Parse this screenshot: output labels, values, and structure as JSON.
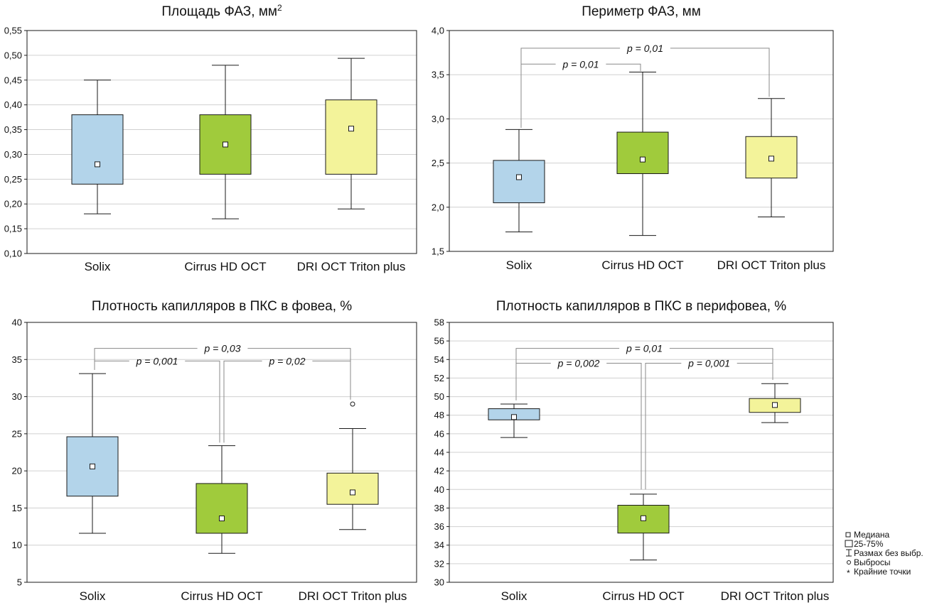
{
  "colors": {
    "solix": "#b3d4ea",
    "cirrus": "#a0cb3c",
    "dri": "#f3f39a",
    "grid": "#d0d0d0",
    "line": "#1a1a1a",
    "bracket": "#8a8a8a"
  },
  "legend": {
    "median": "Медиана",
    "box": "25-75%",
    "range": "Размах без выбр.",
    "outliers": "Выбросы",
    "extremes": "Крайние точки"
  },
  "chart_data": [
    {
      "type": "box",
      "title": "Площадь ФАЗ, мм",
      "title_superscript": "2",
      "categories": [
        "Solix",
        "Cirrus HD OCT",
        "DRI OCT Triton plus"
      ],
      "ylim": [
        0.1,
        0.55
      ],
      "yticks": [
        0.1,
        0.15,
        0.2,
        0.25,
        0.3,
        0.35,
        0.4,
        0.45,
        0.5,
        0.55
      ],
      "ytick_labels": [
        "0,10",
        "0,15",
        "0,20",
        "0,25",
        "0,30",
        "0,35",
        "0,40",
        "0,45",
        "0,50",
        "0,55"
      ],
      "grid": true,
      "boxes": [
        {
          "min": 0.18,
          "q1": 0.24,
          "median": 0.28,
          "q3": 0.38,
          "max": 0.45
        },
        {
          "min": 0.17,
          "q1": 0.26,
          "median": 0.32,
          "q3": 0.38,
          "max": 0.48
        },
        {
          "min": 0.19,
          "q1": 0.26,
          "median": 0.352,
          "q3": 0.41,
          "max": 0.494
        }
      ],
      "comparisons": []
    },
    {
      "type": "box",
      "title": "Периметр ФАЗ, мм",
      "categories": [
        "Solix",
        "Cirrus HD OCT",
        "DRI OCT Triton plus"
      ],
      "ylim": [
        1.5,
        4.0
      ],
      "yticks": [
        1.5,
        2.0,
        2.5,
        3.0,
        3.5,
        4.0
      ],
      "ytick_labels": [
        "1,5",
        "2,0",
        "2,5",
        "3,0",
        "3,5",
        "4,0"
      ],
      "grid": true,
      "boxes": [
        {
          "min": 1.72,
          "q1": 2.05,
          "median": 2.34,
          "q3": 2.53,
          "max": 2.88
        },
        {
          "min": 1.68,
          "q1": 2.38,
          "median": 2.54,
          "q3": 2.85,
          "max": 3.53
        },
        {
          "min": 1.89,
          "q1": 2.33,
          "median": 2.55,
          "q3": 2.8,
          "max": 3.23
        }
      ],
      "comparisons": [
        {
          "from": 0,
          "to": 2,
          "label": "p = 0,01",
          "y": 3.8,
          "left_end": 2.9,
          "right_end": 3.25
        },
        {
          "from": 0,
          "to": 1,
          "label": "p = 0,01",
          "y": 3.62,
          "left_end": 2.9,
          "right_end": 3.54
        }
      ]
    },
    {
      "type": "box",
      "title": "Плотность капилляров в ПКС в фовеа, %",
      "categories": [
        "Solix",
        "Cirrus HD OCT",
        "DRI OCT Triton plus"
      ],
      "ylim": [
        5,
        40
      ],
      "yticks": [
        5,
        10,
        15,
        20,
        25,
        30,
        35,
        40
      ],
      "ytick_labels": [
        "5",
        "10",
        "15",
        "20",
        "25",
        "30",
        "35",
        "40"
      ],
      "grid": true,
      "boxes": [
        {
          "min": 11.6,
          "q1": 16.6,
          "median": 20.6,
          "q3": 24.6,
          "max": 33.1
        },
        {
          "min": 8.9,
          "q1": 11.6,
          "median": 13.6,
          "q3": 18.3,
          "max": 23.4
        },
        {
          "min": 12.1,
          "q1": 15.5,
          "median": 17.1,
          "q3": 19.7,
          "max": 25.7,
          "outliers": [
            29.0
          ]
        }
      ],
      "comparisons": [
        {
          "from": 0,
          "to": 2,
          "label": "p = 0,03",
          "y": 36.5,
          "left_end": 33.6,
          "right_end": 29.6
        },
        {
          "from": 0,
          "to": 1,
          "label": "p = 0,001",
          "y": 34.8,
          "left_end": 33.6,
          "right_end": 23.8
        },
        {
          "from": 1,
          "to": 2,
          "label": "p = 0,02",
          "y": 34.8,
          "left_end": 23.8,
          "right_end": 29.6
        }
      ]
    },
    {
      "type": "box",
      "title": "Плотность капилляров в ПКС в перифовеа, %",
      "categories": [
        "Solix",
        "Cirrus HD OCT",
        "DRI OCT Triton plus"
      ],
      "ylim": [
        30,
        58
      ],
      "yticks": [
        30,
        32,
        34,
        36,
        38,
        40,
        42,
        44,
        46,
        48,
        50,
        52,
        54,
        56,
        58
      ],
      "ytick_labels": [
        "30",
        "32",
        "34",
        "36",
        "38",
        "40",
        "42",
        "44",
        "46",
        "48",
        "50",
        "52",
        "54",
        "56",
        "58"
      ],
      "grid": true,
      "boxes": [
        {
          "min": 45.6,
          "q1": 47.5,
          "median": 47.8,
          "q3": 48.7,
          "max": 49.2
        },
        {
          "min": 32.4,
          "q1": 35.3,
          "median": 36.9,
          "q3": 38.3,
          "max": 39.5
        },
        {
          "min": 47.2,
          "q1": 48.3,
          "median": 49.1,
          "q3": 49.8,
          "max": 51.4
        }
      ],
      "comparisons": [
        {
          "from": 0,
          "to": 2,
          "label": "p = 0,01",
          "y": 55.2,
          "left_end": 49.6,
          "right_end": 51.8
        },
        {
          "from": 0,
          "to": 1,
          "label": "p = 0,002",
          "y": 53.6,
          "left_end": 49.6,
          "right_end": 40.0
        },
        {
          "from": 1,
          "to": 2,
          "label": "p = 0,001",
          "y": 53.6,
          "left_end": 40.0,
          "right_end": 51.8
        }
      ]
    }
  ]
}
